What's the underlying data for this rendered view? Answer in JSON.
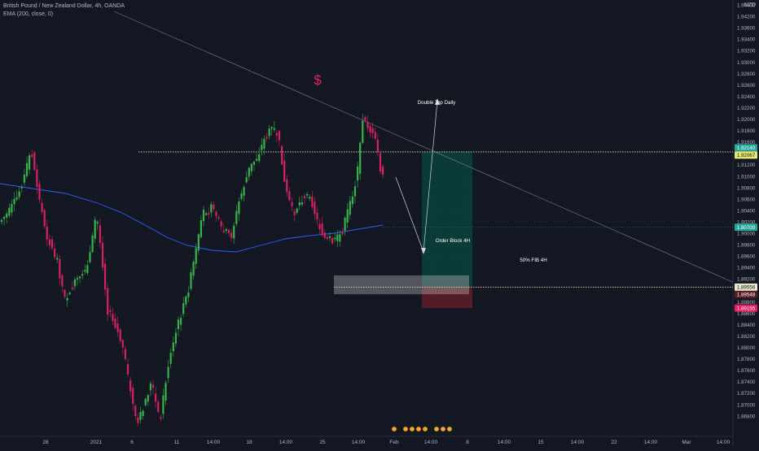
{
  "header": {
    "title": "British Pound / New Zealand Dollar, 4h, OANDA",
    "indicator": "EMA (200, close, 0)",
    "currency": "NZD"
  },
  "colors": {
    "background": "#131722",
    "grid": "#2a2e39",
    "text": "#b2b5be",
    "bull": "#26a69a",
    "bear": "#ef5350",
    "candle_up": "#38b24a",
    "candle_down": "#d6215f",
    "ema": "#2962ff",
    "profit_zone": "#0b3f3a",
    "loss_zone": "#5a1d27",
    "order_block": "#c8c8c8",
    "level_line": "#e6e6b8",
    "dollar": "#e91e63"
  },
  "chart_data": {
    "type": "candlestick",
    "symbol": "GBPNZD",
    "timeframe": "4h",
    "ylim": [
      1.8675,
      1.9495
    ],
    "y_ticks": [
      "1.94400",
      "1.94200",
      "1.93600",
      "1.93400",
      "1.93200",
      "1.93000",
      "1.92800",
      "1.92600",
      "1.92400",
      "1.92200",
      "1.92000",
      "1.91800",
      "1.91600",
      "1.91400",
      "1.91200",
      "1.91000",
      "1.90800",
      "1.90600",
      "1.90400",
      "1.90200",
      "1.90000",
      "1.89800",
      "1.89600",
      "1.89400",
      "1.89200",
      "1.89000",
      "1.88800",
      "1.88600",
      "1.88400",
      "1.88200",
      "1.88000",
      "1.87800",
      "1.87600",
      "1.87400",
      "1.87200",
      "1.87000",
      "1.86800"
    ],
    "x_ticks": [
      "28",
      "2021",
      "6",
      "11",
      "14:00",
      "18",
      "14:00",
      "25",
      "14:00",
      "Feb",
      "14:00",
      "8",
      "14:00",
      "15",
      "14:00",
      "22",
      "14:00",
      "Mar",
      "14:00"
    ],
    "price_labels": [
      {
        "text": "1.92140",
        "kind": "target"
      },
      {
        "text": "1.92067",
        "kind": "level"
      },
      {
        "text": "1.90700",
        "kind": "last"
      },
      {
        "text": "1.89556",
        "kind": "entry"
      },
      {
        "text": "1.89548",
        "kind": "ob"
      },
      {
        "text": "1.89155",
        "kind": "stop"
      }
    ],
    "annotations": [
      {
        "text": "$",
        "kind": "dollar"
      },
      {
        "text": "Double Top Daily",
        "kind": "label"
      },
      {
        "text": "Order Block 4H",
        "kind": "label"
      },
      {
        "text": "50% FIB 4H",
        "kind": "label"
      }
    ],
    "levels": {
      "double_top": 1.9214,
      "fib_50": 1.89556,
      "order_block_top": 1.8978,
      "order_block_bottom": 1.8942,
      "target": 1.9214,
      "stop": 1.89155,
      "last": 1.907
    }
  }
}
